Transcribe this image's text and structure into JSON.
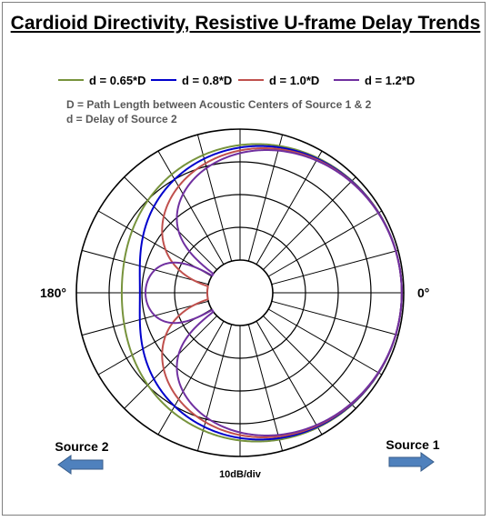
{
  "chart_data": {
    "type": "line",
    "subtype": "polar",
    "title": "Cardioid Directivity, Resistive U-frame Delay Trends",
    "radial_unit_label": "10dB/div",
    "angle_labels": {
      "right": "0°",
      "left": "180°"
    },
    "angular_division_deg": 15,
    "radial_rings": 4,
    "grid": true,
    "legend_position": "top",
    "notes": [
      "D = Path Length between Acoustic Centers of Source 1 & 2",
      "d = Delay of Source 2"
    ],
    "series": [
      {
        "name": "d = 0.65*D",
        "color": "#77933c",
        "delay_ratio": 0.65
      },
      {
        "name": "d = 0.8*D",
        "color": "#0000cc",
        "delay_ratio": 0.8
      },
      {
        "name": "d = 1.0*D",
        "color": "#c0504d",
        "delay_ratio": 1.0
      },
      {
        "name": "d = 1.2*D",
        "color": "#7030a0",
        "delay_ratio": 1.2
      }
    ]
  },
  "sources": {
    "left_label": "Source 2",
    "right_label": "Source 1",
    "arrow_color": "#4f81bd"
  }
}
